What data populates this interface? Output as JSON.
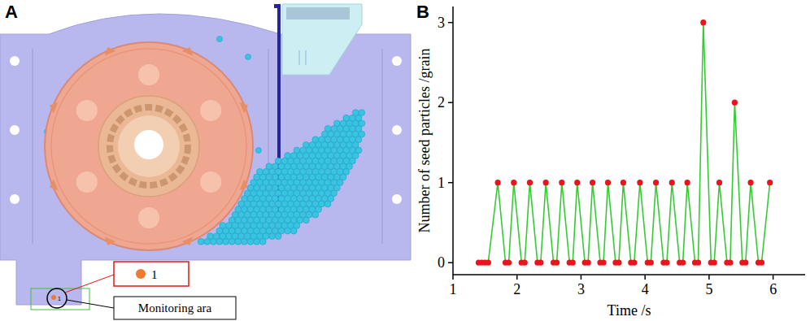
{
  "chart_data": {
    "type": "line",
    "title": "B",
    "xlabel": "Time /s",
    "ylabel": "Number of seed particles /grain",
    "x": [
      1.4,
      1.45,
      1.5,
      1.55,
      1.7,
      1.82,
      1.87,
      1.95,
      2.07,
      2.12,
      2.2,
      2.32,
      2.37,
      2.45,
      2.57,
      2.62,
      2.7,
      2.82,
      2.87,
      2.94,
      3.06,
      3.11,
      3.18,
      3.3,
      3.35,
      3.42,
      3.54,
      3.59,
      3.66,
      3.78,
      3.83,
      3.92,
      4.04,
      4.09,
      4.17,
      4.29,
      4.34,
      4.42,
      4.54,
      4.59,
      4.66,
      4.78,
      4.83,
      4.91,
      5.03,
      5.08,
      5.16,
      5.28,
      5.33,
      5.4,
      5.52,
      5.57,
      5.65,
      5.77,
      5.82,
      5.95
    ],
    "values": [
      0,
      0,
      0,
      0,
      1,
      0,
      0,
      1,
      0,
      0,
      1,
      0,
      0,
      1,
      0,
      0,
      1,
      0,
      0,
      1,
      0,
      0,
      1,
      0,
      0,
      1,
      0,
      0,
      1,
      0,
      0,
      1,
      0,
      0,
      1,
      0,
      0,
      1,
      0,
      0,
      1,
      0,
      0,
      3,
      0,
      0,
      1,
      0,
      0,
      2,
      0,
      0,
      1,
      0,
      0,
      1
    ],
    "color": "#33cc33",
    "marker": "circle",
    "grid": false,
    "xlim": [
      1,
      6.5
    ],
    "xticks": [
      1,
      2,
      3,
      4,
      5,
      6
    ],
    "ylim": [
      -0.15,
      3.2
    ],
    "yticks": [
      0,
      1,
      2,
      3
    ]
  },
  "panel_a": {
    "label": "A",
    "particle_label": "1",
    "monitoring_label": "Monitoring ara"
  }
}
